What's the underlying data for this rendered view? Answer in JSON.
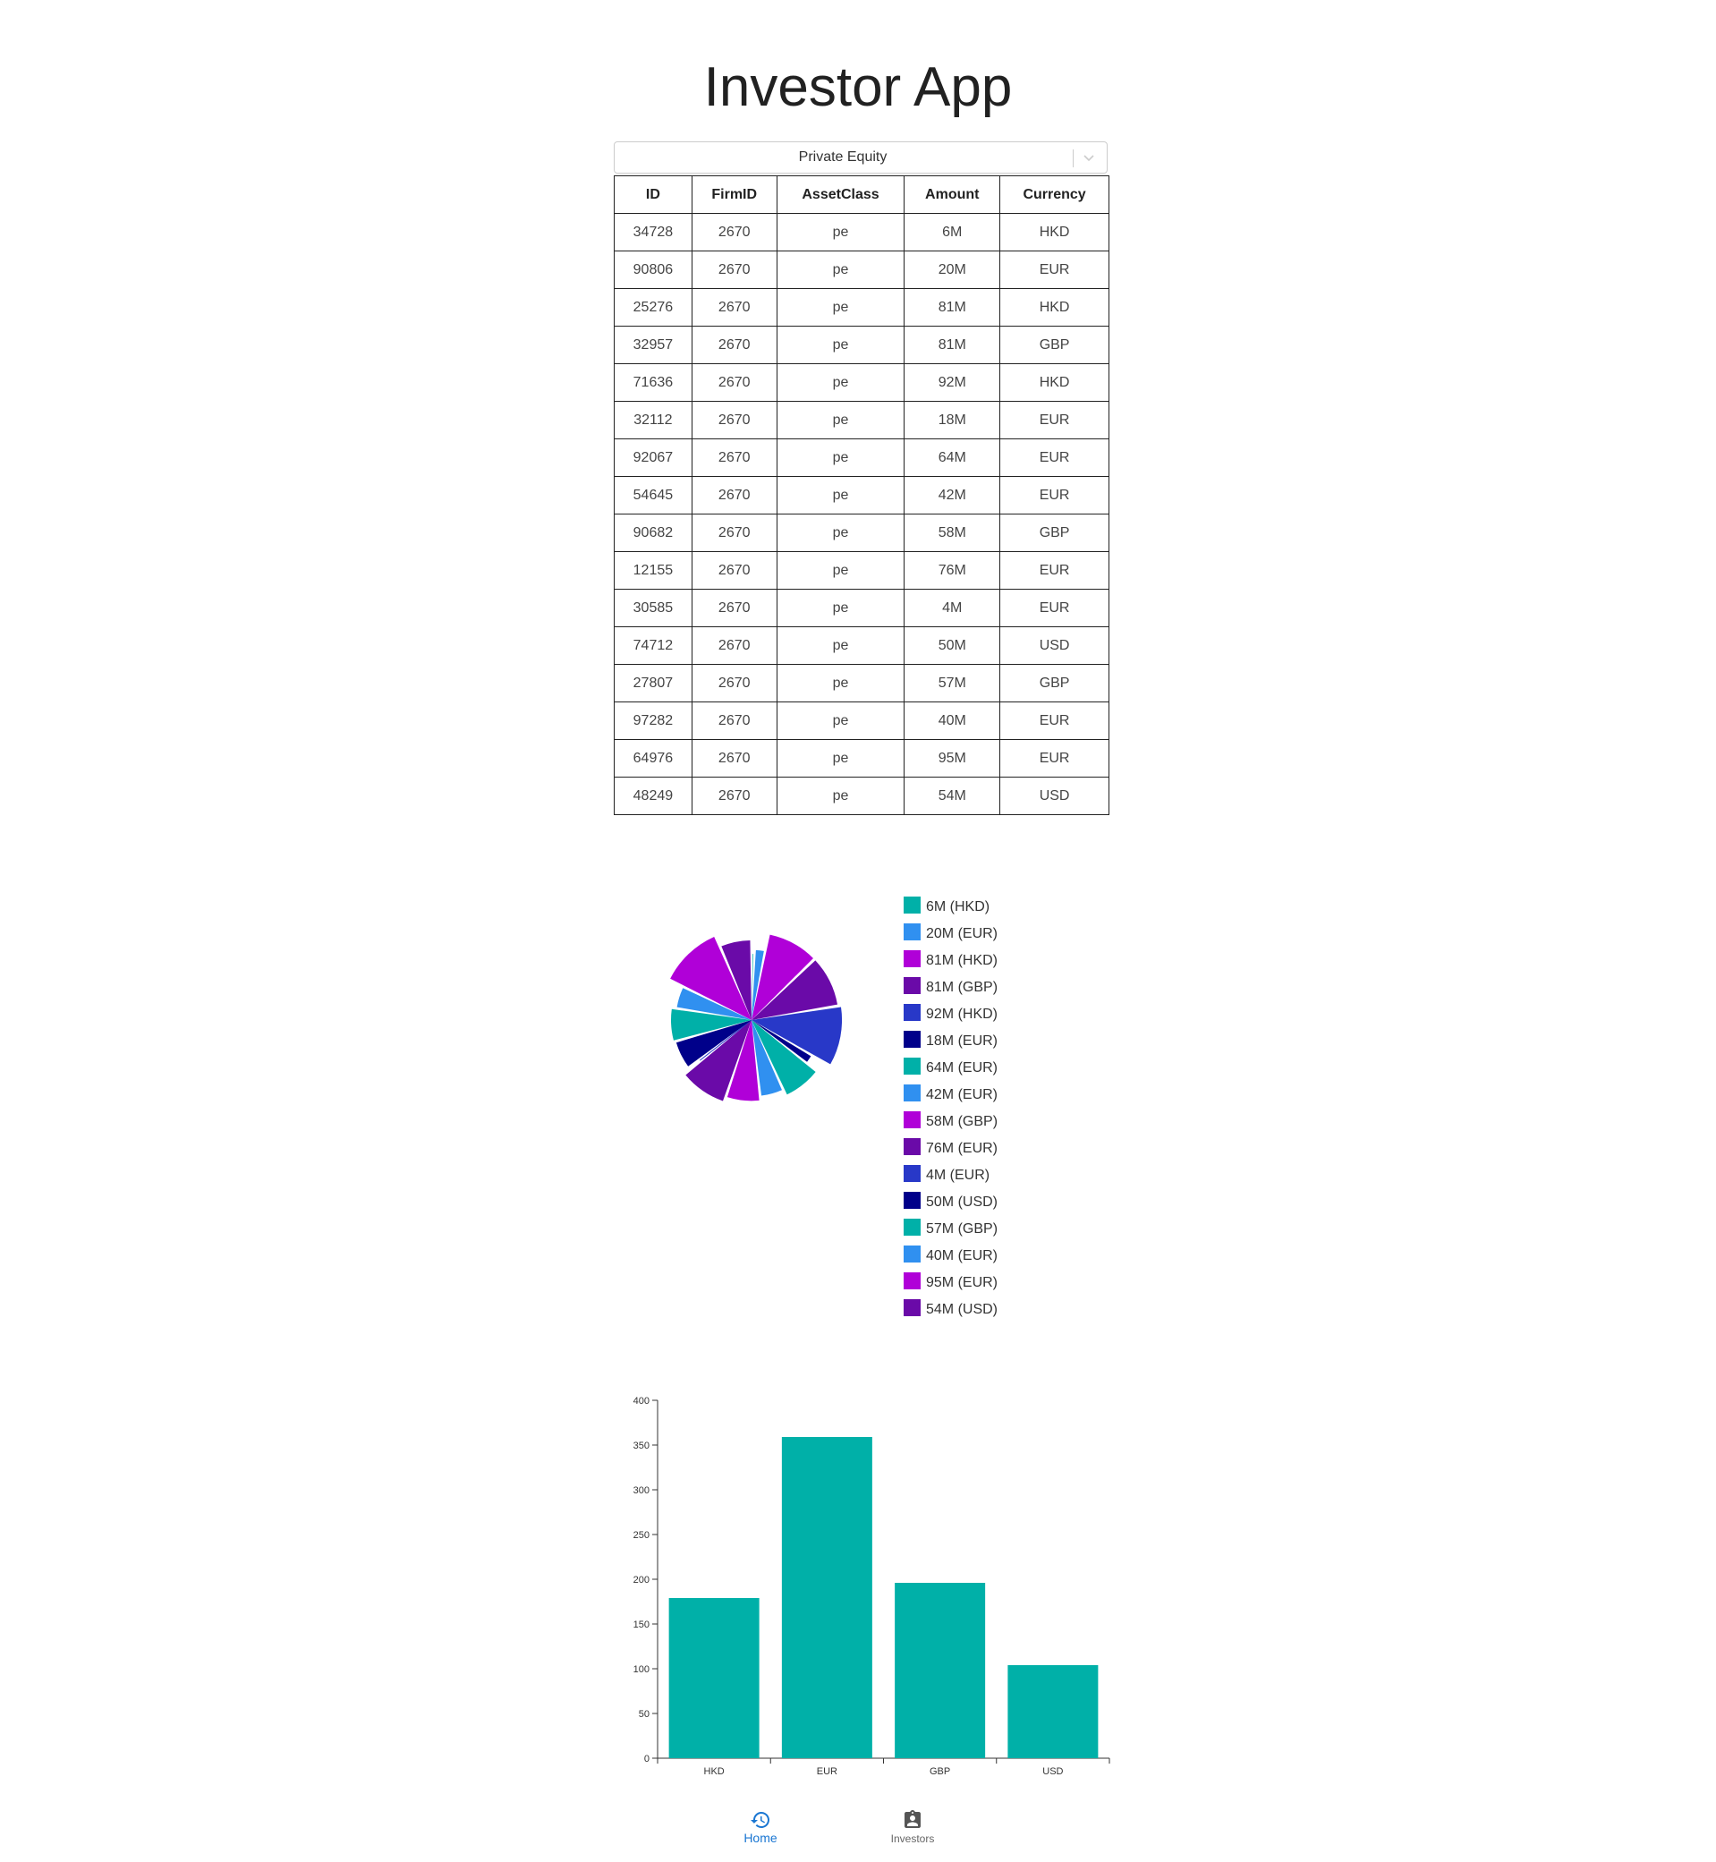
{
  "app": {
    "title": "Investor App"
  },
  "filter": {
    "selected": "Private Equity"
  },
  "table": {
    "headers": [
      "ID",
      "FirmID",
      "AssetClass",
      "Amount",
      "Currency"
    ],
    "rows": [
      [
        "34728",
        "2670",
        "pe",
        "6M",
        "HKD"
      ],
      [
        "90806",
        "2670",
        "pe",
        "20M",
        "EUR"
      ],
      [
        "25276",
        "2670",
        "pe",
        "81M",
        "HKD"
      ],
      [
        "32957",
        "2670",
        "pe",
        "81M",
        "GBP"
      ],
      [
        "71636",
        "2670",
        "pe",
        "92M",
        "HKD"
      ],
      [
        "32112",
        "2670",
        "pe",
        "18M",
        "EUR"
      ],
      [
        "92067",
        "2670",
        "pe",
        "64M",
        "EUR"
      ],
      [
        "54645",
        "2670",
        "pe",
        "42M",
        "EUR"
      ],
      [
        "90682",
        "2670",
        "pe",
        "58M",
        "GBP"
      ],
      [
        "12155",
        "2670",
        "pe",
        "76M",
        "EUR"
      ],
      [
        "30585",
        "2670",
        "pe",
        "4M",
        "EUR"
      ],
      [
        "74712",
        "2670",
        "pe",
        "50M",
        "USD"
      ],
      [
        "27807",
        "2670",
        "pe",
        "57M",
        "GBP"
      ],
      [
        "97282",
        "2670",
        "pe",
        "40M",
        "EUR"
      ],
      [
        "64976",
        "2670",
        "pe",
        "95M",
        "EUR"
      ],
      [
        "48249",
        "2670",
        "pe",
        "54M",
        "USD"
      ]
    ]
  },
  "palette": [
    "#00b0a8",
    "#3090f0",
    "#b000d8",
    "#6a0aa8",
    "#2838c8",
    "#00008a"
  ],
  "chart_data": [
    {
      "type": "pie",
      "legend_position": "right",
      "slices": [
        {
          "label": "6M (HKD)",
          "value": 6
        },
        {
          "label": "20M (EUR)",
          "value": 20
        },
        {
          "label": "81M (HKD)",
          "value": 81
        },
        {
          "label": "81M (GBP)",
          "value": 81
        },
        {
          "label": "92M (HKD)",
          "value": 92
        },
        {
          "label": "18M (EUR)",
          "value": 18
        },
        {
          "label": "64M (EUR)",
          "value": 64
        },
        {
          "label": "42M (EUR)",
          "value": 42
        },
        {
          "label": "58M (GBP)",
          "value": 58
        },
        {
          "label": "76M (EUR)",
          "value": 76
        },
        {
          "label": "4M (EUR)",
          "value": 4
        },
        {
          "label": "50M (USD)",
          "value": 50
        },
        {
          "label": "57M (GBP)",
          "value": 57
        },
        {
          "label": "40M (EUR)",
          "value": 40
        },
        {
          "label": "95M (EUR)",
          "value": 95
        },
        {
          "label": "54M (USD)",
          "value": 54
        }
      ]
    },
    {
      "type": "bar",
      "categories": [
        "HKD",
        "EUR",
        "GBP",
        "USD"
      ],
      "values": [
        179,
        359,
        196,
        104
      ],
      "ylim": [
        0,
        400
      ],
      "yticks": [
        0,
        50,
        100,
        150,
        200,
        250,
        300,
        350,
        400
      ],
      "color": "#00b0a8",
      "grid": false
    }
  ],
  "nav": {
    "home_label": "Home",
    "investors_label": "Investors",
    "active_color": "#1976d2",
    "inactive_color": "#666666",
    "home_icon": "history-icon",
    "investors_icon": "clipboard-account-icon"
  }
}
